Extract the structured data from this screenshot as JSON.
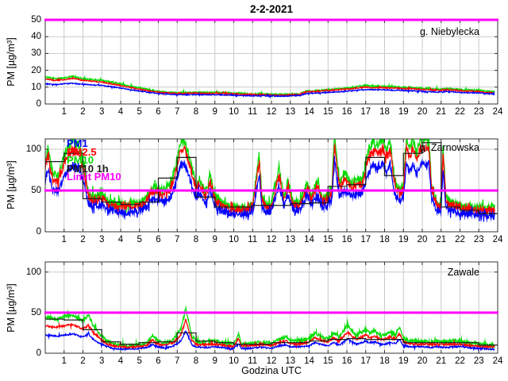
{
  "figure": {
    "title": "2-2-2021",
    "xlabel": "Godzina UTC",
    "ylabel": "PM [µg/m³]"
  },
  "chart_data": {
    "type": "line",
    "title": "2-2-2021",
    "xlabel": "Godzina UTC",
    "ylabel": "PM [µg/m³]",
    "x_range": [
      0,
      24
    ],
    "x_ticks": [
      1,
      2,
      3,
      4,
      5,
      6,
      7,
      8,
      9,
      10,
      11,
      12,
      13,
      14,
      15,
      16,
      17,
      18,
      19,
      20,
      21,
      22,
      23,
      24
    ],
    "grid": true,
    "limit_value": 50,
    "colors": {
      "pm10": "#00dd00",
      "pm25": "#ff0000",
      "pm1": "#0000ff",
      "step": "#1a1a1a",
      "limit": "#ff00ff",
      "grid": "#c9c9c9",
      "axis": "#333333"
    },
    "legend": [
      {
        "label": "PM1",
        "color": "#0000ff"
      },
      {
        "label": "PM2.5",
        "color": "#ff0000"
      },
      {
        "label": "PM10",
        "color": "#00dd00"
      },
      {
        "label": "PM10 1h",
        "color": "#1a1a1a"
      },
      {
        "label": "Limit PM10",
        "color": "#ff00ff"
      }
    ],
    "panels": [
      {
        "name": "g. Niebylecka",
        "ylim": [
          0,
          50
        ],
        "yticks": [
          0,
          10,
          20,
          30,
          40,
          50
        ],
        "step_hourly": null,
        "noise": {
          "pm10": 0.45,
          "pm25": 0.35,
          "pm1": 0.3
        },
        "t": [
          0,
          0.5,
          1,
          1.5,
          2,
          2.5,
          3,
          3.5,
          4,
          4.5,
          5,
          5.5,
          6,
          6.5,
          7,
          7.5,
          8,
          8.5,
          9,
          9.5,
          10,
          10.5,
          11,
          11.5,
          12,
          12.5,
          13,
          13.5,
          13.8,
          14,
          14.5,
          15,
          15.5,
          16,
          16.5,
          17,
          17.5,
          18,
          18.5,
          19,
          19.5,
          20,
          20.5,
          21,
          21.5,
          22,
          22.5,
          23,
          23.5,
          24
        ],
        "pm10": [
          16,
          15,
          15.5,
          16.5,
          15,
          14.5,
          14,
          13,
          12,
          10.5,
          9.5,
          8.5,
          7.5,
          7,
          6.8,
          6.8,
          7,
          6.8,
          6.8,
          6.8,
          6.5,
          6.2,
          6,
          6,
          5.8,
          5.5,
          5.8,
          6,
          7.5,
          7.8,
          8,
          8.5,
          9,
          9.5,
          10.2,
          11,
          10.5,
          10.5,
          10.2,
          10,
          9.8,
          9.3,
          9,
          8.8,
          9.2,
          8.5,
          8.3,
          8.2,
          7.5,
          7.2
        ],
        "pm25": [
          15,
          14,
          14.5,
          15.3,
          14,
          13.5,
          13,
          12,
          11,
          9.8,
          8.8,
          7.8,
          7,
          6.5,
          6.3,
          6.3,
          6.5,
          6.3,
          6.3,
          6.3,
          6,
          5.8,
          5.6,
          5.6,
          5.4,
          5.2,
          5.4,
          5.6,
          7,
          7.3,
          7.5,
          8,
          8.4,
          8.8,
          9.4,
          10,
          9.7,
          9.7,
          9.4,
          9.2,
          9,
          8.6,
          8.3,
          8.1,
          8.5,
          7.8,
          7.6,
          7.5,
          6.9,
          6.6
        ],
        "pm1": [
          12,
          11.5,
          12,
          12.3,
          11.8,
          11.3,
          11,
          10.3,
          9.5,
          8.5,
          7.7,
          6.9,
          6.2,
          5.8,
          5.5,
          5.5,
          5.6,
          5.5,
          5.5,
          5.4,
          5.2,
          5,
          4.9,
          4.9,
          4.8,
          4.6,
          4.8,
          5,
          6,
          6.3,
          6.5,
          6.9,
          7.2,
          7.6,
          8.1,
          8.6,
          8.4,
          8.4,
          8.1,
          8,
          7.8,
          7.5,
          7.2,
          7.1,
          7.4,
          6.8,
          6.7,
          6.6,
          6.1,
          5.8
        ]
      },
      {
        "name": "g. Zarnowska",
        "ylim": [
          0,
          112.5
        ],
        "yticks": [
          0,
          50,
          100
        ],
        "step_hourly": [
          85,
          95,
          40,
          36,
          33,
          36,
          65,
          90,
          42,
          30,
          30,
          32,
          32,
          34,
          35,
          55,
          57,
          90,
          68,
          95,
          108,
          30,
          26,
          22
        ],
        "noise": {
          "pm10": 5,
          "pm25": 4,
          "pm1": 4
        },
        "t": [
          0,
          0.15,
          0.4,
          0.7,
          1.0,
          1.3,
          1.5,
          1.8,
          2.05,
          2.3,
          2.7,
          3.0,
          3.4,
          3.8,
          4.2,
          4.6,
          5.0,
          5.3,
          5.6,
          5.9,
          6.2,
          6.6,
          6.9,
          7.15,
          7.4,
          7.7,
          8.0,
          8.2,
          8.5,
          8.75,
          9.0,
          9.4,
          9.8,
          10.2,
          10.6,
          11.0,
          11.35,
          11.5,
          11.7,
          12.0,
          12.4,
          12.65,
          12.9,
          13.1,
          13.5,
          13.9,
          14.1,
          14.45,
          14.7,
          15.0,
          15.2,
          15.35,
          15.6,
          15.9,
          16.2,
          16.5,
          16.8,
          17.1,
          17.4,
          17.6,
          17.9,
          18.1,
          18.3,
          18.55,
          18.8,
          19.0,
          19.15,
          19.35,
          19.5,
          19.7,
          19.9,
          20.1,
          20.35,
          20.5,
          20.8,
          21.0,
          21.1,
          21.25,
          21.5,
          22.0,
          22.5,
          23.0,
          23.5,
          24.0
        ],
        "pm10": [
          85,
          102,
          70,
          68,
          92,
          106,
          112,
          104,
          82,
          46,
          41,
          45,
          36,
          33,
          32,
          34,
          36,
          39,
          52,
          53,
          49,
          56,
          78,
          108,
          112,
          85,
          58,
          64,
          47,
          68,
          44,
          34,
          30,
          29,
          29,
          33,
          95,
          42,
          32,
          34,
          78,
          42,
          62,
          38,
          34,
          60,
          44,
          62,
          40,
          44,
          52,
          118,
          58,
          70,
          60,
          62,
          63,
          95,
          110,
          105,
          112,
          100,
          112,
          60,
          50,
          58,
          112,
          100,
          112,
          95,
          112,
          112,
          112,
          55,
          34,
          35,
          105,
          42,
          36,
          32,
          30,
          29,
          28,
          30
        ],
        "pm25": [
          77,
          92,
          63,
          61,
          83,
          95,
          101,
          94,
          74,
          41,
          37,
          41,
          32,
          30,
          29,
          31,
          32,
          35,
          47,
          48,
          44,
          50,
          70,
          97,
          101,
          77,
          52,
          58,
          42,
          61,
          40,
          31,
          27,
          26,
          26,
          30,
          86,
          38,
          29,
          31,
          70,
          38,
          56,
          34,
          31,
          54,
          40,
          56,
          36,
          40,
          47,
          106,
          52,
          63,
          54,
          56,
          57,
          86,
          99,
          95,
          101,
          90,
          101,
          54,
          45,
          52,
          101,
          90,
          101,
          86,
          101,
          101,
          101,
          50,
          31,
          32,
          95,
          38,
          32,
          29,
          27,
          26,
          25,
          27
        ],
        "pm1": [
          62,
          74,
          51,
          50,
          67,
          77,
          82,
          76,
          60,
          34,
          30,
          33,
          26,
          24,
          23,
          25,
          26,
          28,
          38,
          39,
          36,
          41,
          57,
          79,
          82,
          62,
          42,
          47,
          34,
          50,
          32,
          25,
          22,
          21,
          21,
          24,
          69,
          31,
          23,
          25,
          57,
          31,
          45,
          28,
          25,
          44,
          32,
          45,
          29,
          32,
          38,
          86,
          42,
          51,
          44,
          45,
          46,
          69,
          80,
          77,
          82,
          73,
          82,
          44,
          37,
          42,
          82,
          73,
          82,
          69,
          82,
          82,
          82,
          40,
          25,
          26,
          77,
          31,
          26,
          23,
          22,
          21,
          20,
          22
        ]
      },
      {
        "name": "Zawale",
        "ylim": [
          0,
          112.5
        ],
        "yticks": [
          0,
          50,
          100
        ],
        "step_hourly": [
          42,
          41,
          29,
          14,
          11,
          13,
          14,
          25,
          15,
          13,
          11,
          11,
          13,
          13,
          15,
          17,
          18,
          17,
          17,
          13,
          13,
          13,
          13,
          10
        ],
        "noise": {
          "pm10": 1.8,
          "pm25": 1.2,
          "pm1": 0.9
        },
        "t": [
          0,
          0.3,
          0.6,
          0.9,
          1.2,
          1.5,
          1.8,
          2.0,
          2.3,
          2.5,
          2.8,
          3.0,
          3.3,
          3.6,
          4.0,
          4.4,
          4.8,
          5.1,
          5.4,
          5.7,
          5.9,
          6.2,
          6.5,
          6.8,
          7.0,
          7.2,
          7.45,
          7.6,
          7.8,
          8.0,
          8.3,
          8.6,
          9.0,
          9.4,
          9.7,
          10.0,
          10.25,
          10.4,
          10.8,
          11.2,
          11.6,
          12.0,
          12.4,
          12.8,
          13.0,
          13.3,
          13.6,
          14.0,
          14.3,
          14.6,
          15.0,
          15.3,
          15.6,
          15.9,
          16.05,
          16.2,
          16.5,
          16.8,
          17.0,
          17.2,
          17.5,
          17.8,
          18.0,
          18.3,
          18.6,
          18.8,
          19.0,
          19.3,
          19.6,
          20.0,
          20.4,
          20.8,
          21.2,
          21.6,
          22.0,
          22.4,
          22.8,
          23.2,
          23.6,
          24.0
        ],
        "pm10": [
          45,
          43,
          42,
          44,
          46,
          47,
          42,
          40,
          47,
          36,
          26,
          21,
          15,
          12,
          10,
          9,
          10,
          11,
          13,
          22,
          16,
          13,
          14,
          17,
          24,
          30,
          56,
          40,
          20,
          15,
          13,
          14,
          15,
          13,
          12,
          12,
          24,
          12,
          12,
          13,
          14,
          12,
          17,
          20,
          16,
          15,
          16,
          18,
          25,
          21,
          18,
          25,
          20,
          30,
          35,
          30,
          22,
          26,
          30,
          25,
          28,
          22,
          22,
          26,
          24,
          33,
          18,
          16,
          15,
          15,
          14,
          15,
          14,
          15,
          15,
          13,
          12,
          11,
          10,
          10
        ],
        "pm25": [
          34,
          32,
          32,
          33,
          35,
          35,
          32,
          30,
          35,
          27,
          20,
          16,
          11,
          9,
          8,
          7,
          8,
          8,
          10,
          17,
          12,
          10,
          11,
          13,
          18,
          23,
          42,
          30,
          15,
          11,
          10,
          11,
          11,
          10,
          9,
          9,
          18,
          9,
          9,
          10,
          11,
          9,
          13,
          15,
          12,
          11,
          12,
          14,
          19,
          16,
          14,
          19,
          15,
          23,
          26,
          23,
          17,
          20,
          23,
          19,
          21,
          17,
          17,
          20,
          18,
          25,
          14,
          12,
          11,
          11,
          11,
          11,
          11,
          11,
          11,
          10,
          9,
          8,
          8,
          8
        ],
        "pm1": [
          22,
          22,
          21,
          22,
          23,
          24,
          21,
          20,
          24,
          18,
          13,
          11,
          8,
          6,
          5,
          5,
          5,
          6,
          7,
          11,
          8,
          7,
          7,
          9,
          12,
          15,
          28,
          20,
          10,
          8,
          7,
          7,
          8,
          7,
          6,
          6,
          12,
          6,
          6,
          7,
          7,
          6,
          9,
          10,
          8,
          8,
          8,
          9,
          13,
          11,
          9,
          13,
          10,
          15,
          18,
          15,
          11,
          13,
          15,
          13,
          14,
          11,
          11,
          13,
          12,
          17,
          9,
          8,
          8,
          8,
          7,
          8,
          7,
          8,
          8,
          7,
          6,
          6,
          5,
          5
        ]
      }
    ]
  }
}
